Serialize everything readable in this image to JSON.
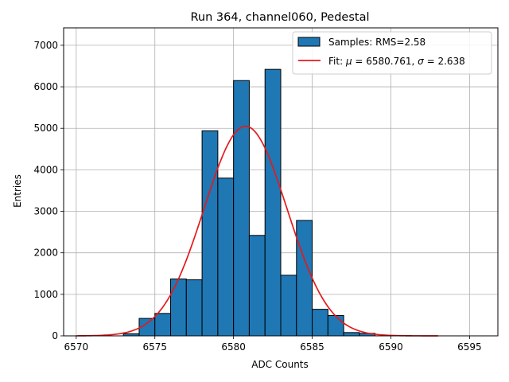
{
  "chart_data": {
    "type": "bar",
    "title": "Run 364, channel060, Pedestal",
    "xlabel": "ADC Counts",
    "ylabel": "Entries",
    "xlim": [
      6569.2,
      6596.8
    ],
    "ylim": [
      0,
      7420
    ],
    "xticks": [
      6570,
      6575,
      6580,
      6585,
      6590,
      6595
    ],
    "yticks": [
      0,
      1000,
      2000,
      3000,
      4000,
      5000,
      6000,
      7000
    ],
    "grid": true,
    "legend_position": "top-right",
    "histogram": {
      "name": "Samples: RMS=2.58",
      "color": "#1f77b4",
      "edge_color": "#000000",
      "bin_edges": [
        6573,
        6574,
        6575,
        6576,
        6577,
        6578,
        6579,
        6580,
        6581,
        6582,
        6583,
        6584,
        6585,
        6586,
        6587,
        6588,
        6589
      ],
      "values": [
        50,
        420,
        540,
        1370,
        1350,
        4940,
        3800,
        6150,
        2420,
        6420,
        1460,
        2780,
        640,
        490,
        80,
        60
      ]
    },
    "fit": {
      "name": "Fit: μ = 6580.761, σ = 2.638",
      "color": "#e41a1c",
      "mu": 6580.761,
      "sigma": 2.638,
      "amplitude": 5050,
      "x_range": [
        6570,
        6593
      ]
    }
  }
}
